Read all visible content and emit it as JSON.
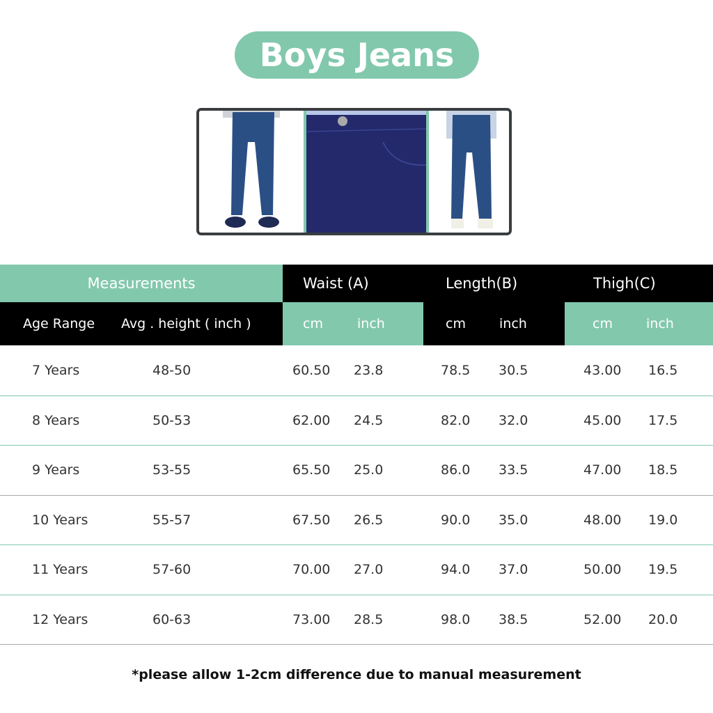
{
  "title": "Boys Jeans",
  "colors": {
    "accent": "#82c8ad",
    "header_dark": "#000000",
    "frame": "#3a3d40",
    "denim": "#2a4f85",
    "denim_dark": "#23296b"
  },
  "images": [
    {
      "icon": "jeans-front-photo"
    },
    {
      "icon": "jeans-closeup-photo"
    },
    {
      "icon": "jeans-back-photo"
    }
  ],
  "header": {
    "measurements": "Measurements",
    "waist": "Waist  (A)",
    "length": "Length(B)",
    "thigh": "Thigh(C)",
    "age_range": "Age Range",
    "avg_height": "Avg . height ( inch )",
    "cm": "cm",
    "inch": "inch"
  },
  "rows": [
    {
      "age": "7 Years",
      "height": "48-50",
      "waist_cm": "60.50",
      "waist_in": "23.8",
      "length_cm": "78.5",
      "length_in": "30.5",
      "thigh_cm": "43.00",
      "thigh_in": "16.5"
    },
    {
      "age": "8 Years",
      "height": "50-53",
      "waist_cm": "62.00",
      "waist_in": "24.5",
      "length_cm": "82.0",
      "length_in": "32.0",
      "thigh_cm": "45.00",
      "thigh_in": "17.5"
    },
    {
      "age": "9 Years",
      "height": "53-55",
      "waist_cm": "65.50",
      "waist_in": "25.0",
      "length_cm": "86.0",
      "length_in": "33.5",
      "thigh_cm": "47.00",
      "thigh_in": "18.5"
    },
    {
      "age": "10 Years",
      "height": "55-57",
      "waist_cm": "67.50",
      "waist_in": "26.5",
      "length_cm": "90.0",
      "length_in": "35.0",
      "thigh_cm": "48.00",
      "thigh_in": "19.0"
    },
    {
      "age": "11 Years",
      "height": "57-60",
      "waist_cm": "70.00",
      "waist_in": "27.0",
      "length_cm": "94.0",
      "length_in": "37.0",
      "thigh_cm": "50.00",
      "thigh_in": "19.5"
    },
    {
      "age": "12 Years",
      "height": "60-63",
      "waist_cm": "73.00",
      "waist_in": "28.5",
      "length_cm": "98.0",
      "length_in": "38.5",
      "thigh_cm": "52.00",
      "thigh_in": "20.0"
    }
  ],
  "note": "*please allow 1-2cm difference due to manual measurement"
}
